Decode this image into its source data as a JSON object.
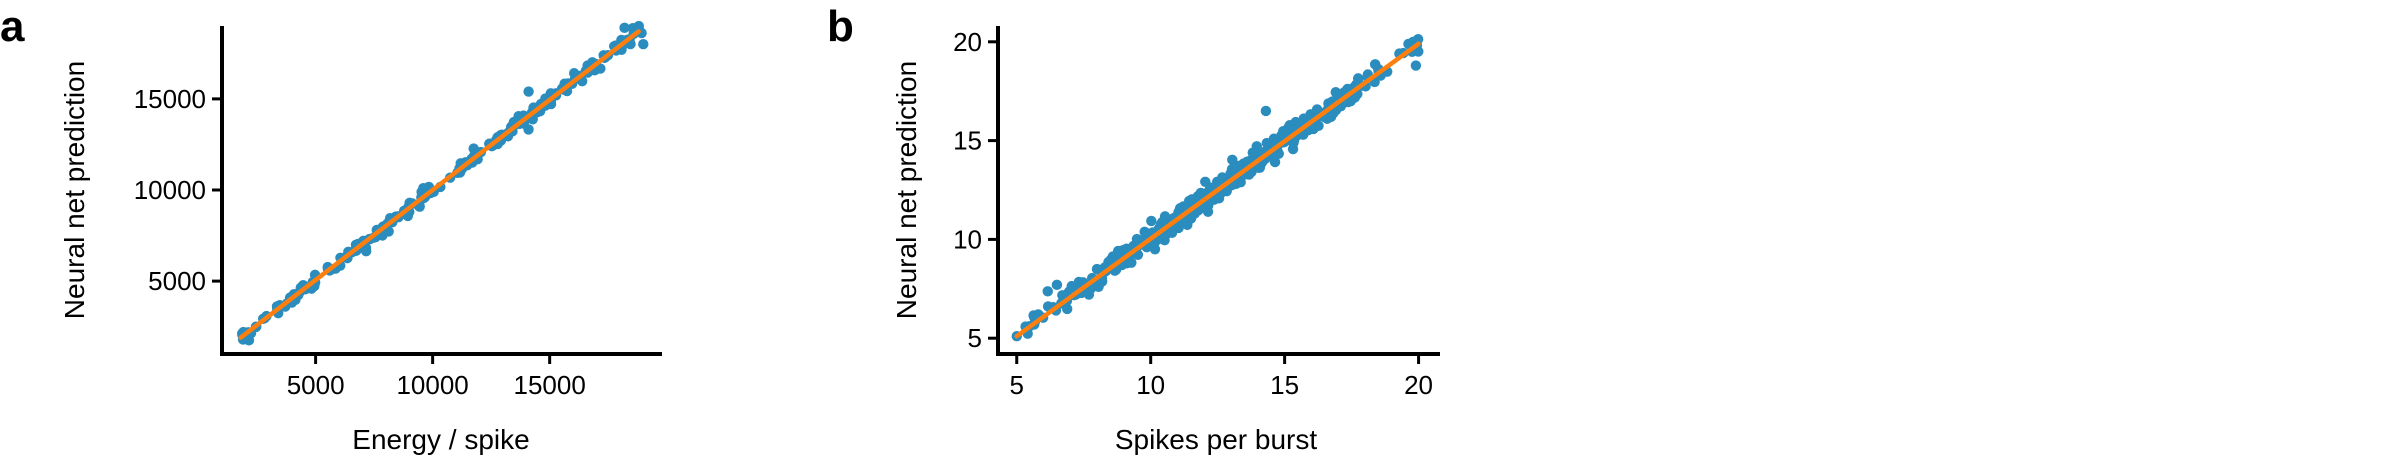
{
  "colors": {
    "points": "#2b8cbe",
    "fit": "#ff7f0e",
    "axes": "#000000"
  },
  "chart_data": [
    {
      "panel": "a",
      "type": "scatter",
      "xlabel": "Energy / spike",
      "ylabel": "Neural net prediction",
      "xlim": [
        1000,
        19800
      ],
      "ylim": [
        1000,
        19000
      ],
      "xticks": [
        5000,
        10000,
        15000
      ],
      "yticks": [
        5000,
        10000,
        15000
      ],
      "grid": false,
      "fit_line": {
        "x": [
          1800,
          18800
        ],
        "y": [
          1900,
          18700
        ]
      },
      "x_range": [
        1800,
        19000
      ],
      "noise": 180,
      "n_points": 220,
      "outliers": [
        {
          "x": 14100,
          "y": 15400
        },
        {
          "x": 18200,
          "y": 18900
        },
        {
          "x": 19000,
          "y": 18000
        },
        {
          "x": 9600,
          "y": 10100
        },
        {
          "x": 1900,
          "y": 1800
        }
      ]
    },
    {
      "panel": "b",
      "type": "scatter",
      "xlabel": "Spikes per burst",
      "ylabel": "Neural net prediction",
      "xlim": [
        4.3,
        20.8
      ],
      "ylim": [
        4.2,
        20.8
      ],
      "xticks": [
        5,
        10,
        15,
        20
      ],
      "yticks": [
        5,
        10,
        15,
        20
      ],
      "grid": false,
      "fit_line": {
        "x": [
          5,
          20
        ],
        "y": [
          5.1,
          19.9
        ]
      },
      "x_range": [
        5,
        20
      ],
      "noise": 0.28,
      "n_points": 480,
      "outliers": [
        {
          "x": 5.0,
          "y": 5.1
        },
        {
          "x": 5.8,
          "y": 6.2
        },
        {
          "x": 6.5,
          "y": 7.7
        },
        {
          "x": 19.9,
          "y": 18.8
        },
        {
          "x": 19.8,
          "y": 20.0
        },
        {
          "x": 14.3,
          "y": 16.5
        }
      ]
    }
  ]
}
